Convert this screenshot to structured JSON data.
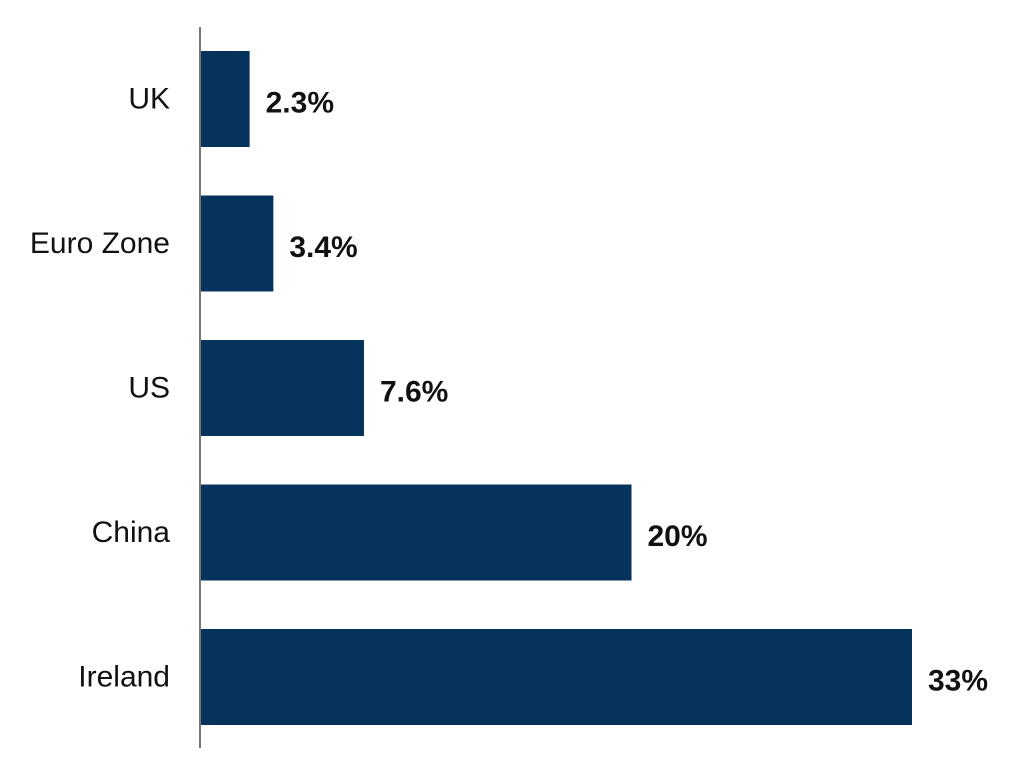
{
  "chart_data": {
    "type": "bar",
    "orientation": "horizontal",
    "categories": [
      "UK",
      "Euro Zone",
      "US",
      "China",
      "Ireland"
    ],
    "values": [
      2.3,
      3.4,
      7.6,
      20,
      33
    ],
    "value_labels": [
      "2.3%",
      "3.4%",
      "7.6%",
      "20%",
      "33%"
    ],
    "xlim": [
      0,
      33
    ],
    "grid": false,
    "legend": "none",
    "bar_color": "#05335C",
    "axis_color": "#777777"
  }
}
